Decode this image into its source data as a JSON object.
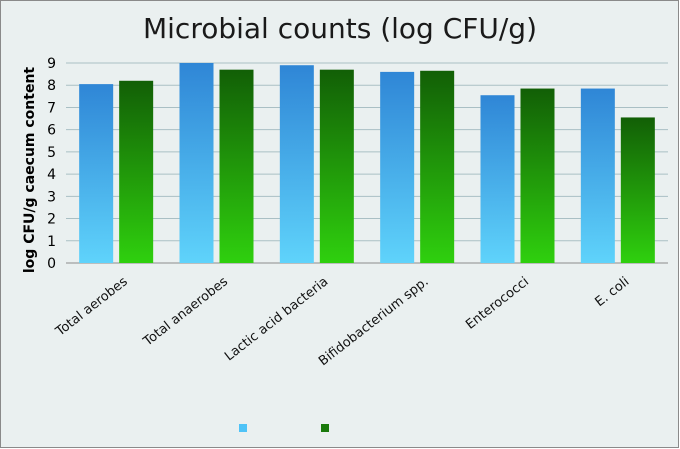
{
  "chart_data": {
    "type": "bar",
    "title": "Microbial counts (log CFU/g)",
    "xlabel": "",
    "ylabel": "log CFU/g caecum content",
    "ylim": [
      0,
      9
    ],
    "yticks": [
      0,
      1,
      2,
      3,
      4,
      5,
      6,
      7,
      8,
      9
    ],
    "grid": true,
    "legend_position": "bottom",
    "categories": [
      "Total aerobes",
      "Total anaerobes",
      "Lactic acid bacteria",
      "Bifidobacterium spp.",
      "Enterococci",
      "E. coli"
    ],
    "series": [
      {
        "name": "",
        "color": "#3a9de0",
        "values": [
          8.05,
          9.0,
          8.9,
          8.6,
          7.55,
          7.85
        ]
      },
      {
        "name": "",
        "color": "#1e8c10",
        "values": [
          8.2,
          8.7,
          8.7,
          8.65,
          7.85,
          6.55
        ]
      }
    ]
  }
}
